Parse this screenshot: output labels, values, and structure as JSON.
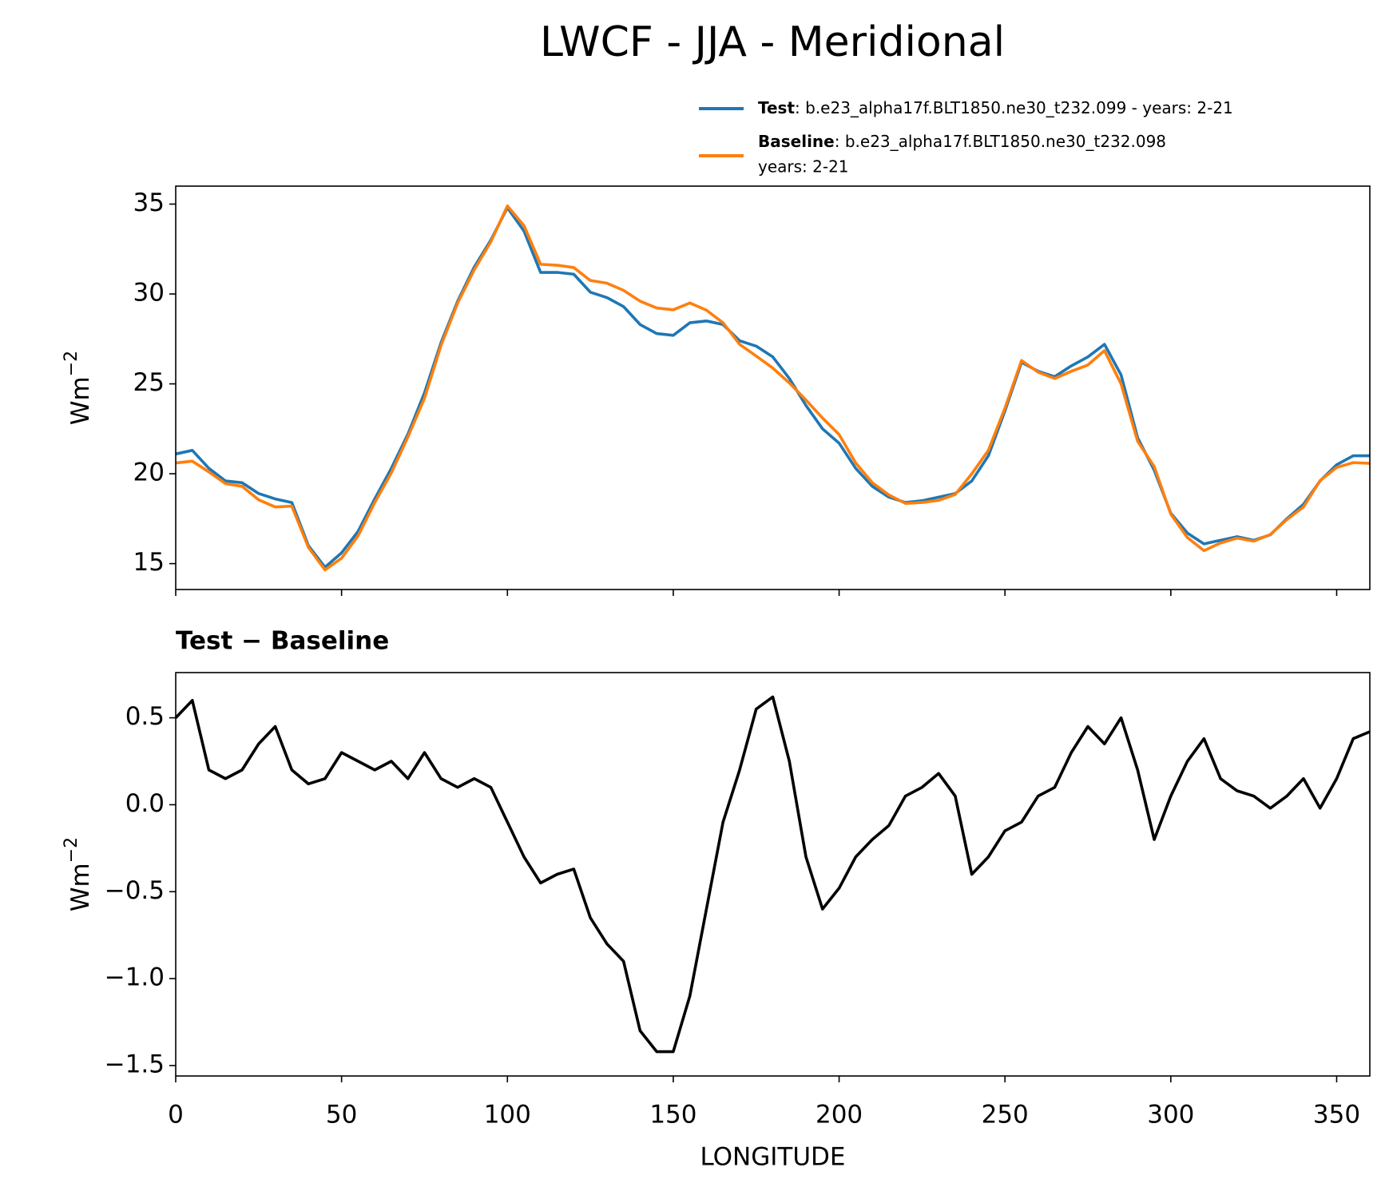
{
  "title": "LWCF - JJA - Meridional",
  "chart_data": [
    {
      "type": "line",
      "x": [
        0,
        5,
        10,
        15,
        20,
        25,
        30,
        35,
        40,
        45,
        50,
        55,
        60,
        65,
        70,
        75,
        80,
        85,
        90,
        95,
        100,
        105,
        110,
        115,
        120,
        125,
        130,
        135,
        140,
        145,
        150,
        155,
        160,
        165,
        170,
        175,
        180,
        185,
        190,
        195,
        200,
        205,
        210,
        215,
        220,
        225,
        230,
        235,
        240,
        245,
        250,
        255,
        260,
        265,
        270,
        275,
        280,
        285,
        290,
        295,
        300,
        305,
        310,
        315,
        320,
        325,
        330,
        335,
        340,
        345,
        350,
        355,
        360
      ],
      "series": [
        {
          "name": "Test",
          "description": [
            ": b.e23_alpha17f.BLT1850.ne30_t232.099 - years: 2-21"
          ],
          "color": "#1f77b4",
          "values": [
            21.1,
            21.3,
            20.3,
            19.6,
            19.5,
            18.9,
            18.6,
            18.4,
            16.0,
            14.8,
            15.6,
            16.8,
            18.6,
            20.3,
            22.2,
            24.5,
            27.3,
            29.6,
            31.5,
            33.0,
            34.8,
            33.5,
            31.2,
            31.2,
            31.1,
            30.1,
            29.8,
            29.3,
            28.3,
            27.8,
            27.7,
            28.4,
            28.5,
            28.3,
            27.4,
            27.1,
            26.5,
            25.3,
            23.8,
            22.5,
            21.7,
            20.3,
            19.3,
            18.7,
            18.4,
            18.5,
            18.7,
            18.9,
            19.6,
            21.0,
            23.5,
            26.2,
            25.7,
            25.4,
            26.0,
            26.5,
            27.2,
            25.5,
            22.0,
            20.2,
            17.8,
            16.7,
            16.1,
            16.3,
            16.5,
            16.3,
            16.6,
            17.5,
            18.3,
            19.6,
            20.5,
            21.0,
            21.0
          ]
        },
        {
          "name": "Baseline",
          "description": [
            ": b.e23_alpha17f.BLT1850.ne30_t232.098",
            "years: 2-21"
          ],
          "color": "#ff7f0e",
          "values": [
            20.6,
            20.7,
            20.1,
            19.45,
            19.3,
            18.55,
            18.15,
            18.2,
            15.9,
            14.65,
            15.3,
            16.55,
            18.4,
            20.05,
            22.05,
            24.2,
            27.15,
            29.5,
            31.35,
            32.9,
            34.9,
            33.8,
            31.65,
            31.6,
            31.47,
            30.75,
            30.6,
            30.2,
            29.6,
            29.22,
            29.12,
            29.5,
            29.1,
            28.4,
            27.2,
            26.55,
            25.88,
            25.05,
            24.1,
            23.1,
            22.18,
            20.6,
            19.5,
            18.82,
            18.35,
            18.4,
            18.52,
            18.85,
            20.0,
            21.3,
            23.65,
            26.3,
            25.65,
            25.3,
            25.7,
            26.05,
            26.85,
            25.0,
            21.8,
            20.4,
            17.75,
            16.45,
            15.72,
            16.15,
            16.42,
            16.25,
            16.62,
            17.45,
            18.15,
            19.62,
            20.35,
            20.62,
            20.58
          ]
        }
      ],
      "xlim": [
        0,
        360
      ],
      "ylim": [
        13.56,
        36
      ],
      "yticks": [
        15,
        20,
        25,
        30,
        35
      ],
      "ylabel": {
        "base": "Wm",
        "sup": "−2"
      }
    },
    {
      "type": "line",
      "title": "Test − Baseline",
      "x": [
        0,
        5,
        10,
        15,
        20,
        25,
        30,
        35,
        40,
        45,
        50,
        55,
        60,
        65,
        70,
        75,
        80,
        85,
        90,
        95,
        100,
        105,
        110,
        115,
        120,
        125,
        130,
        135,
        140,
        145,
        150,
        155,
        160,
        165,
        170,
        175,
        180,
        185,
        190,
        195,
        200,
        205,
        210,
        215,
        220,
        225,
        230,
        235,
        240,
        245,
        250,
        255,
        260,
        265,
        270,
        275,
        280,
        285,
        290,
        295,
        300,
        305,
        310,
        315,
        320,
        325,
        330,
        335,
        340,
        345,
        350,
        355,
        360
      ],
      "series": [
        {
          "color": "#000000",
          "values": [
            0.5,
            0.6,
            0.2,
            0.15,
            0.2,
            0.35,
            0.45,
            0.2,
            0.12,
            0.15,
            0.3,
            0.25,
            0.2,
            0.25,
            0.15,
            0.3,
            0.15,
            0.1,
            0.15,
            0.1,
            -0.1,
            -0.3,
            -0.45,
            -0.4,
            -0.37,
            -0.65,
            -0.8,
            -0.9,
            -1.3,
            -1.42,
            -1.42,
            -1.1,
            -0.6,
            -0.1,
            0.2,
            0.55,
            0.62,
            0.25,
            -0.3,
            -0.6,
            -0.48,
            -0.3,
            -0.2,
            -0.12,
            0.05,
            0.1,
            0.18,
            0.05,
            -0.4,
            -0.3,
            -0.15,
            -0.1,
            0.05,
            0.1,
            0.3,
            0.45,
            0.35,
            0.5,
            0.2,
            -0.2,
            0.05,
            0.25,
            0.38,
            0.15,
            0.08,
            0.05,
            -0.02,
            0.05,
            0.15,
            -0.02,
            0.15,
            0.38,
            0.42
          ]
        }
      ],
      "xlim": [
        0,
        360
      ],
      "xticks": [
        0,
        50,
        100,
        150,
        200,
        250,
        300,
        350
      ],
      "ylim": [
        -1.56,
        0.76
      ],
      "yticks": [
        {
          "value": -1.5,
          "label": "−1.5"
        },
        {
          "value": -1.0,
          "label": "−1.0"
        },
        {
          "value": -0.5,
          "label": "−0.5"
        },
        {
          "value": 0.0,
          "label": "0.0"
        },
        {
          "value": 0.5,
          "label": "0.5"
        }
      ],
      "xlabel": "LONGITUDE",
      "ylabel": {
        "base": "Wm",
        "sup": "−2"
      }
    }
  ]
}
